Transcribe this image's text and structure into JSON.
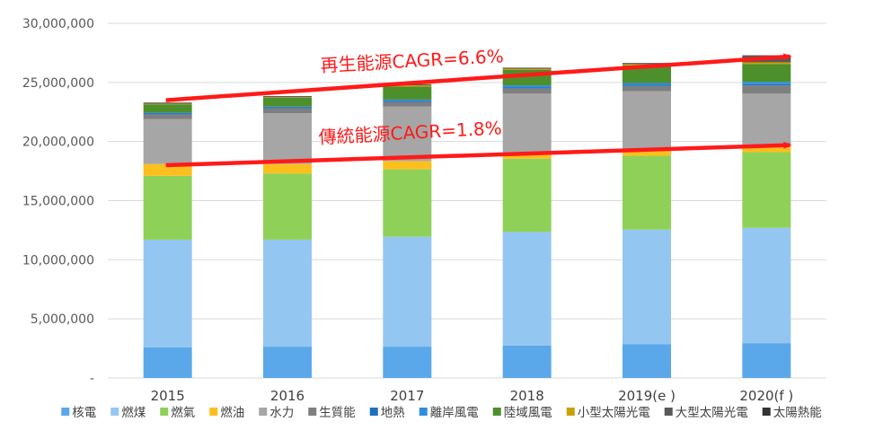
{
  "chart_data": {
    "type": "bar",
    "stacked": true,
    "title": "",
    "xlabel": "",
    "ylabel": "",
    "ylim": [
      0,
      30000000
    ],
    "yticks": [
      0,
      5000000,
      10000000,
      15000000,
      20000000,
      25000000,
      30000000
    ],
    "ytick_labels": [
      "-",
      "5,000,000",
      "10,000,000",
      "15,000,000",
      "20,000,000",
      "25,000,000",
      "30,000,000"
    ],
    "grid": true,
    "legend_position": "bottom",
    "categories": [
      "2015",
      "2016",
      "2017",
      "2018",
      "2019(e )",
      "2020(f )"
    ],
    "series": [
      {
        "name": "核電",
        "color": "#5aa8ea",
        "values": [
          2600000,
          2650000,
          2650000,
          2750000,
          2850000,
          2950000
        ]
      },
      {
        "name": "燃煤",
        "color": "#94c6f2",
        "values": [
          9100000,
          9050000,
          9300000,
          9600000,
          9700000,
          9750000
        ]
      },
      {
        "name": "燃氣",
        "color": "#8fd158",
        "values": [
          5400000,
          5600000,
          5700000,
          6200000,
          6250000,
          6400000
        ]
      },
      {
        "name": "燃油",
        "color": "#fcbf1e",
        "values": [
          1000000,
          800000,
          700000,
          500000,
          450000,
          650000
        ]
      },
      {
        "name": "水力",
        "color": "#a6a6a6",
        "values": [
          3800000,
          4300000,
          4600000,
          5000000,
          5000000,
          4300000
        ]
      },
      {
        "name": "生質能",
        "color": "#7f7f7f",
        "values": [
          400000,
          400000,
          400000,
          450000,
          450000,
          700000
        ]
      },
      {
        "name": "地熱",
        "color": "#1f6fbf",
        "values": [
          100000,
          100000,
          100000,
          100000,
          100000,
          100000
        ]
      },
      {
        "name": "離岸風電",
        "color": "#2e8de0",
        "values": [
          50000,
          50000,
          100000,
          150000,
          150000,
          200000
        ]
      },
      {
        "name": "陸域風電",
        "color": "#4d8f2b",
        "values": [
          700000,
          750000,
          1100000,
          1300000,
          1500000,
          1500000
        ]
      },
      {
        "name": "小型太陽光電",
        "color": "#c9a000",
        "values": [
          50000,
          50000,
          100000,
          100000,
          100000,
          150000
        ]
      },
      {
        "name": "大型太陽光電",
        "color": "#595959",
        "values": [
          100000,
          100000,
          100000,
          100000,
          100000,
          600000
        ]
      },
      {
        "name": "太陽熱能",
        "color": "#333333",
        "values": [
          0,
          0,
          0,
          0,
          0,
          0
        ]
      }
    ],
    "annotations": [
      {
        "text": "再生能源CAGR=6.6%",
        "arrow_from": {
          "x": "2015",
          "y": 23500000
        },
        "arrow_to": {
          "x": "2020(f )",
          "y": 27200000
        },
        "color": "#ff1a1a"
      },
      {
        "text": "傳統能源CAGR=1.8%",
        "arrow_from": {
          "x": "2015",
          "y": 18000000
        },
        "arrow_to": {
          "x": "2020(f )",
          "y": 19700000
        },
        "color": "#ff1a1a"
      }
    ]
  }
}
